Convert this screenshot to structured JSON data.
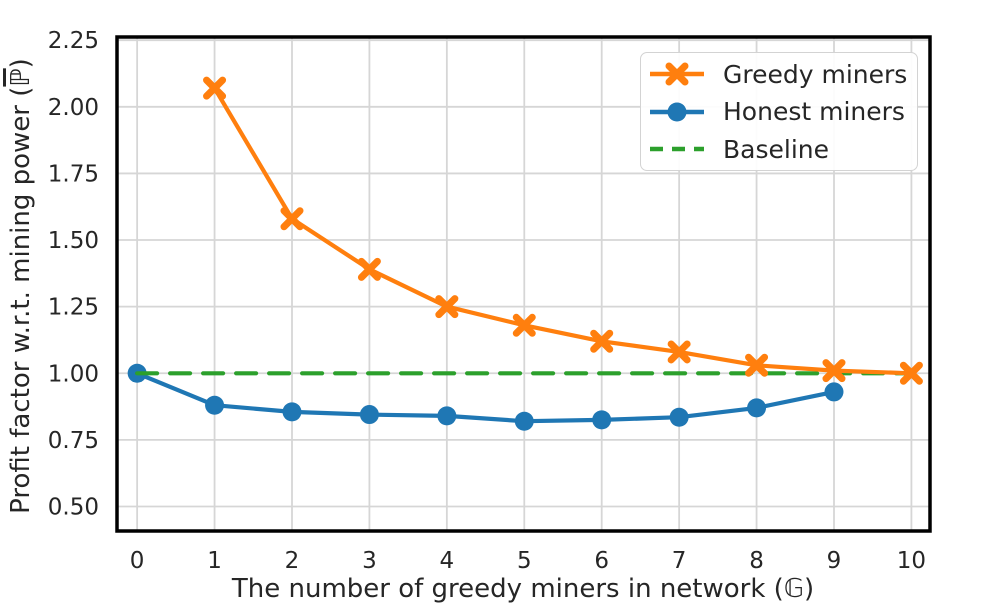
{
  "chart_data": {
    "type": "line",
    "xlabel": "The number of greedy miners in network (𝔾)",
    "xlabel_parts": {
      "prefix": "The number of greedy miners in network (",
      "symbol": "𝔾",
      "suffix": ")"
    },
    "ylabel": "Profit factor w.r.t. mining power (ℙ̄)",
    "ylabel_parts": {
      "prefix": "Profit factor w.r.t. mining power (",
      "symbol": "ℙ",
      "symbol_overline": true,
      "suffix": ")"
    },
    "xlim": [
      -0.26,
      10.24
    ],
    "ylim": [
      0.408,
      2.262
    ],
    "xticks": {
      "values": [
        0,
        1,
        2,
        3,
        4,
        5,
        6,
        7,
        8,
        9,
        10
      ],
      "labels": [
        "0",
        "1",
        "2",
        "3",
        "4",
        "5",
        "6",
        "7",
        "8",
        "9",
        "10"
      ]
    },
    "yticks": {
      "values": [
        0.5,
        0.75,
        1.0,
        1.25,
        1.5,
        1.75,
        2.0,
        2.25
      ],
      "labels": [
        "0.50",
        "0.75",
        "1.00",
        "1.25",
        "1.50",
        "1.75",
        "2.00",
        "2.25"
      ]
    },
    "grid": true,
    "legend_position": "upper right",
    "series": [
      {
        "name": "Honest miners",
        "color": "#1f77b4",
        "marker": "circle",
        "line_style": "solid",
        "x": [
          0,
          1,
          2,
          3,
          4,
          5,
          6,
          7,
          8,
          9
        ],
        "y": [
          1.0,
          0.88,
          0.855,
          0.845,
          0.84,
          0.82,
          0.825,
          0.835,
          0.87,
          0.93
        ]
      },
      {
        "name": "Baseline",
        "color": "#2ca02c",
        "marker": "none",
        "line_style": "dashed",
        "x": [
          0,
          10
        ],
        "y": [
          1.0,
          1.0
        ]
      },
      {
        "name": "Greedy miners",
        "color": "#ff7f0e",
        "marker": "x",
        "line_style": "solid",
        "x": [
          1,
          2,
          3,
          4,
          5,
          6,
          7,
          8,
          9,
          10
        ],
        "y": [
          2.07,
          1.58,
          1.39,
          1.25,
          1.18,
          1.12,
          1.08,
          1.03,
          1.01,
          1.0
        ]
      }
    ],
    "legend_order": [
      "Greedy miners",
      "Honest miners",
      "Baseline"
    ],
    "colors": {
      "background": "#ffffff",
      "grid": "#d6d6d6",
      "spine": "#000000",
      "text": "#262626",
      "legend_border": "#d3d3d3"
    }
  }
}
